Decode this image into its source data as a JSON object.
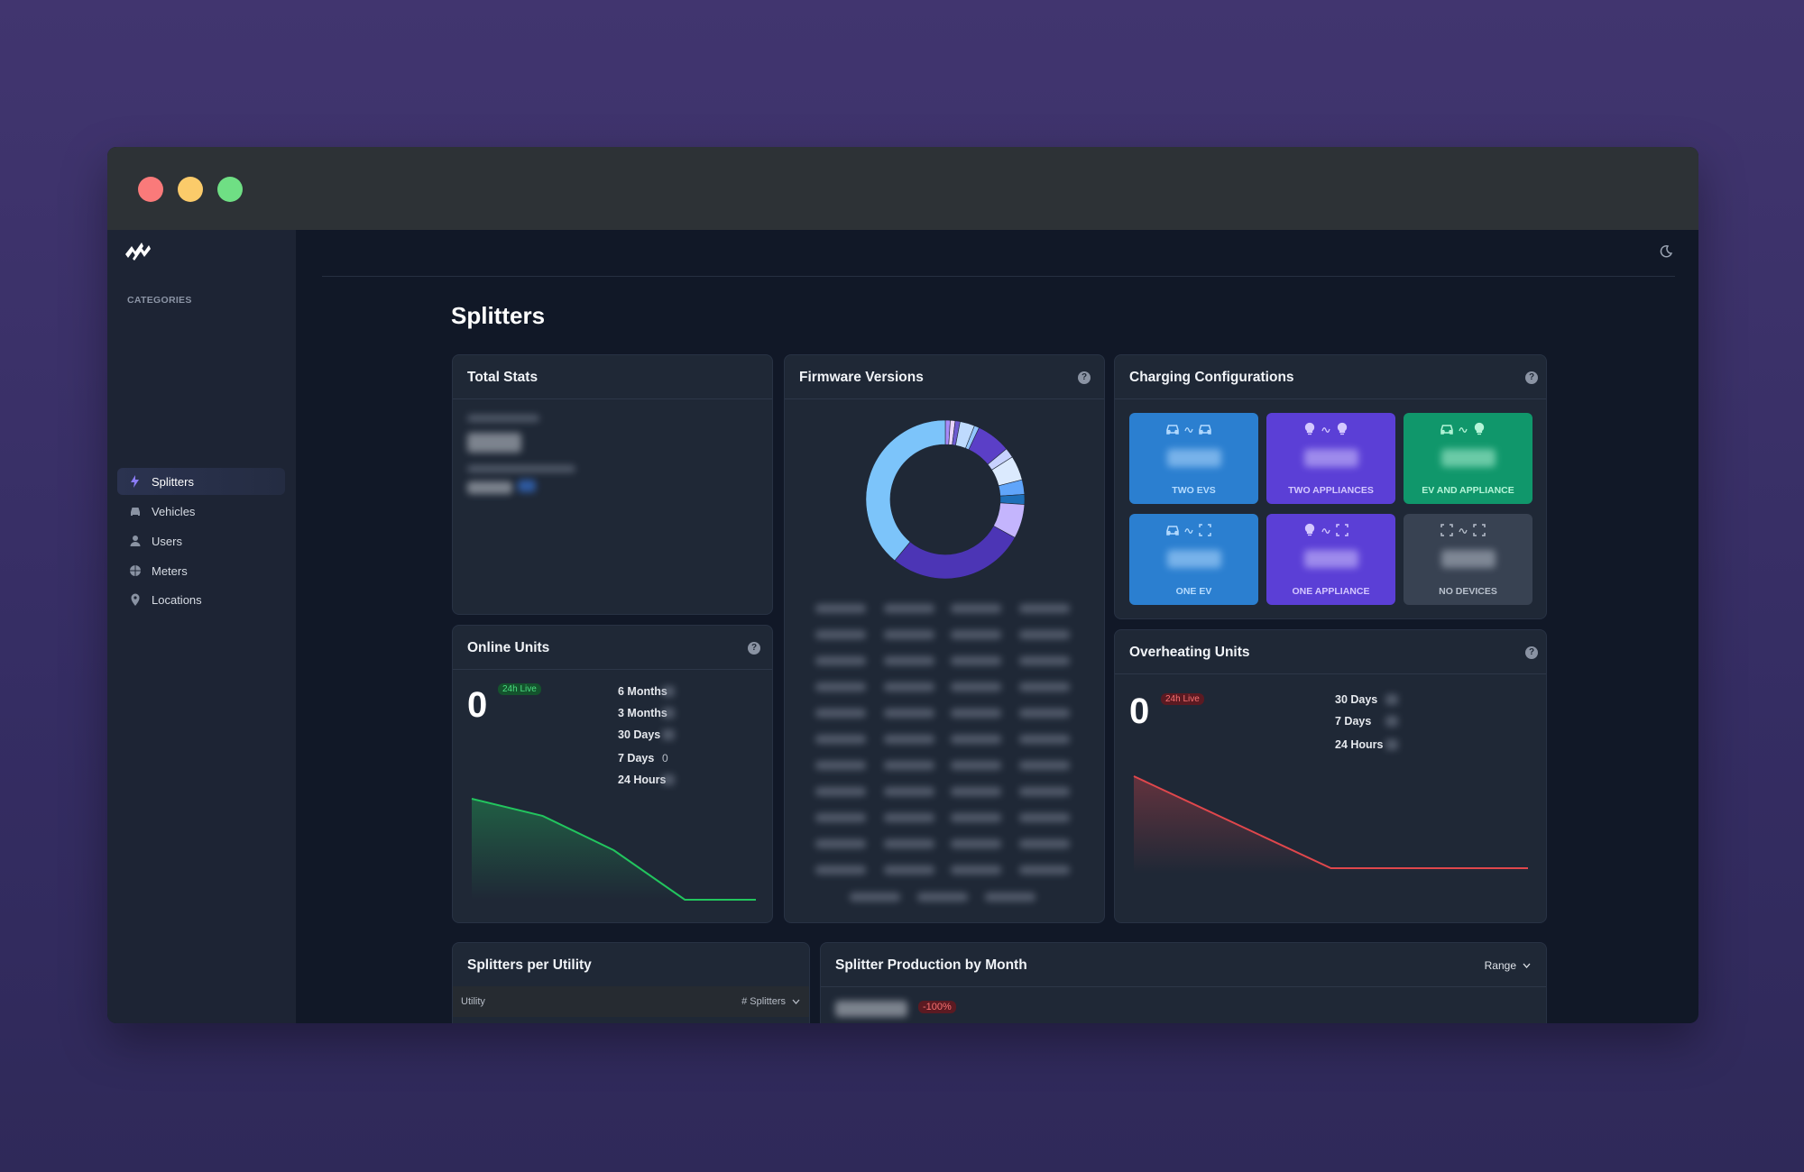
{
  "sidebar": {
    "section": "CATEGORIES",
    "items": [
      "Splitters",
      "Vehicles",
      "Users",
      "Meters",
      "Locations"
    ],
    "active": 0
  },
  "page": {
    "title": "Splitters"
  },
  "cards": {
    "total_stats": {
      "title": "Total Stats"
    },
    "firmware": {
      "title": "Firmware Versions",
      "segments": [
        {
          "value": 1,
          "color": "#a78bfa"
        },
        {
          "value": 1,
          "color": "#e9d5ff"
        },
        {
          "value": 1,
          "color": "#6d5bd0"
        },
        {
          "value": 3,
          "color": "#bfdbfe"
        },
        {
          "value": 1,
          "color": "#93c5fd"
        },
        {
          "value": 7,
          "color": "#5b3fc7"
        },
        {
          "value": 2,
          "color": "#c7d2fe"
        },
        {
          "value": 5,
          "color": "#dbeafe"
        },
        {
          "value": 3,
          "color": "#60a5fa"
        },
        {
          "value": 2,
          "color": "#1e6fb8"
        },
        {
          "value": 7,
          "color": "#c4b5fd"
        },
        {
          "value": 28,
          "color": "#4c35b5"
        },
        {
          "value": 39,
          "color": "#7cc4fa"
        }
      ]
    },
    "charging": {
      "title": "Charging Configurations",
      "tiles": [
        {
          "label": "TWO EVS",
          "color": "#2b7fd0",
          "text_color": "#b6dcff",
          "icons": [
            "car",
            "car"
          ]
        },
        {
          "label": "TWO APPLIANCES",
          "color": "#5b3fd6",
          "text_color": "#d4c8ff",
          "icons": [
            "bulb",
            "bulb"
          ]
        },
        {
          "label": "EV AND APPLIANCE",
          "color": "#10976b",
          "text_color": "#b5f5d8",
          "icons": [
            "car",
            "bulb"
          ]
        },
        {
          "label": "ONE EV",
          "color": "#2b7fd0",
          "text_color": "#b6dcff",
          "icons": [
            "car",
            "empty"
          ]
        },
        {
          "label": "ONE APPLIANCE",
          "color": "#5b3fd6",
          "text_color": "#d4c8ff",
          "icons": [
            "bulb",
            "empty"
          ]
        },
        {
          "label": "NO DEVICES",
          "color": "#384252",
          "text_color": "#b8c0cc",
          "icons": [
            "empty",
            "empty"
          ]
        }
      ]
    },
    "online": {
      "title": "Online Units",
      "value": 0,
      "badge": "24h Live",
      "periods": [
        {
          "label": "6 Months"
        },
        {
          "label": "3 Months"
        },
        {
          "label": "30 Days"
        },
        {
          "label": "7 Days",
          "value": 0
        },
        {
          "label": "24 Hours"
        }
      ],
      "trend": [
        100,
        83,
        49,
        0,
        0
      ],
      "color": "#22c55e"
    },
    "overheating": {
      "title": "Overheating Units",
      "value": 0,
      "badge": "24h Live",
      "periods": [
        {
          "label": "30 Days"
        },
        {
          "label": "7 Days"
        },
        {
          "label": "24 Hours"
        }
      ],
      "trend": [
        100,
        0,
        0
      ],
      "color": "#e0474c"
    },
    "utility": {
      "title": "Splitters per Utility",
      "columns": [
        "Utility",
        "# Splitters"
      ]
    },
    "production": {
      "title": "Splitter Production by Month",
      "range": "Range",
      "badge": "-100%"
    }
  }
}
